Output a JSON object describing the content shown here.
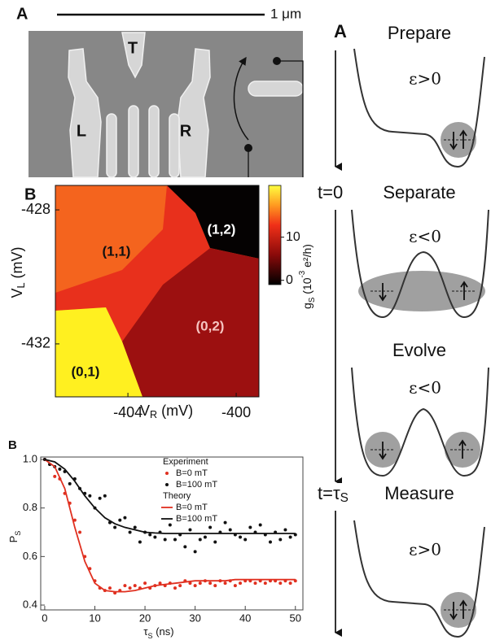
{
  "sem_image": {
    "label": "A",
    "scale_bar": "1 μm",
    "gate_labels": [
      "T",
      "L",
      "R"
    ]
  },
  "chart_data": [
    {
      "type": "heatmap",
      "panel_label": "B",
      "x_label": [
        "V",
        "R",
        " (mV)"
      ],
      "y_label": [
        "V",
        "L",
        " (mV)"
      ],
      "xlim": [
        -406.68,
        -399.16
      ],
      "ylim": [
        -433.58,
        -427.27
      ],
      "xticks": [
        -404,
        -400
      ],
      "yticks": [
        -432,
        -428
      ],
      "colorbar": {
        "clim": [
          -1,
          22
        ],
        "ticks": [
          0,
          10
        ],
        "label": [
          "g",
          "S",
          " (10",
          "-3",
          " e²/h)"
        ]
      },
      "region_labels": [
        "(1,1)",
        "(1,2)",
        "(0,2)",
        "(0,1)"
      ]
    },
    {
      "type": "line",
      "panel_label": "B",
      "x_label": [
        "τ",
        "S",
        " (ns)"
      ],
      "y_label": [
        "P",
        "S"
      ],
      "xlim": [
        -0.8,
        51.5
      ],
      "ylim": [
        0.38,
        1.01
      ],
      "xticks": [
        0,
        10,
        20,
        30,
        40,
        50
      ],
      "yticks": [
        0.4,
        0.6,
        0.8,
        {
          "value": 1,
          "label": "1.0"
        }
      ],
      "legend_titles": [
        "Experiment",
        "Theory"
      ],
      "series": [
        {
          "name": "B=0 mT",
          "color": "#e03020",
          "style": "markers",
          "x": [
            0,
            1,
            2,
            3,
            4,
            5,
            6,
            7,
            8,
            9,
            10,
            11,
            12,
            13,
            14,
            15,
            16,
            17,
            18,
            19,
            20,
            21,
            22,
            23,
            24,
            25,
            26,
            27,
            28,
            29,
            30,
            31,
            32,
            33,
            34,
            35,
            36,
            37,
            38,
            39,
            40,
            41,
            42,
            43,
            44,
            45,
            46,
            47,
            48,
            49,
            50
          ],
          "values": [
            1.0,
            0.98,
            0.93,
            0.92,
            0.86,
            0.82,
            0.75,
            0.7,
            0.6,
            0.55,
            0.5,
            0.47,
            0.46,
            0.47,
            0.45,
            0.46,
            0.48,
            0.47,
            0.48,
            0.47,
            0.49,
            0.47,
            0.48,
            0.49,
            0.48,
            0.49,
            0.47,
            0.48,
            0.5,
            0.49,
            0.48,
            0.49,
            0.5,
            0.49,
            0.48,
            0.5,
            0.49,
            0.5,
            0.48,
            0.49,
            0.5,
            0.5,
            0.49,
            0.5,
            0.49,
            0.5,
            0.5,
            0.49,
            0.5,
            0.49,
            0.5
          ]
        },
        {
          "name": "B=100 mT",
          "color": "#111111",
          "style": "markers",
          "x": [
            0,
            1,
            2,
            3,
            4,
            5,
            6,
            7,
            8,
            9,
            10,
            11,
            12,
            13,
            14,
            15,
            16,
            17,
            18,
            19,
            20,
            21,
            22,
            23,
            24,
            25,
            26,
            27,
            28,
            29,
            30,
            31,
            32,
            33,
            34,
            35,
            36,
            37,
            38,
            39,
            40,
            41,
            42,
            43,
            44,
            45,
            46,
            47,
            48,
            49,
            50
          ],
          "values": [
            1.0,
            0.98,
            0.97,
            0.96,
            0.95,
            0.9,
            0.92,
            0.88,
            0.86,
            0.85,
            0.8,
            0.84,
            0.85,
            0.74,
            0.72,
            0.75,
            0.76,
            0.7,
            0.72,
            0.66,
            0.7,
            0.69,
            0.68,
            0.7,
            0.67,
            0.73,
            0.67,
            0.69,
            0.64,
            0.71,
            0.62,
            0.67,
            0.68,
            0.72,
            0.66,
            0.7,
            0.74,
            0.71,
            0.69,
            0.68,
            0.67,
            0.72,
            0.7,
            0.73,
            0.69,
            0.66,
            0.7,
            0.67,
            0.71,
            0.68,
            0.69
          ]
        },
        {
          "name": "B=0 mT",
          "color": "#e03020",
          "style": "line",
          "x": [
            0,
            2,
            4,
            6,
            8,
            10,
            12,
            14,
            16,
            18,
            20,
            22,
            24,
            26,
            28,
            30,
            32,
            34,
            36,
            38,
            40,
            42,
            44,
            46,
            48,
            50
          ],
          "values": [
            1.0,
            0.97,
            0.88,
            0.72,
            0.58,
            0.49,
            0.46,
            0.455,
            0.455,
            0.46,
            0.47,
            0.48,
            0.485,
            0.49,
            0.495,
            0.5,
            0.5,
            0.5,
            0.5,
            0.505,
            0.505,
            0.505,
            0.505,
            0.505,
            0.505,
            0.505
          ]
        },
        {
          "name": "B=100 mT",
          "color": "#111111",
          "style": "line",
          "x": [
            0,
            2,
            4,
            6,
            8,
            10,
            12,
            14,
            16,
            18,
            20,
            22,
            24,
            26,
            28,
            30,
            32,
            34,
            36,
            38,
            40,
            42,
            44,
            46,
            48,
            50
          ],
          "values": [
            1.0,
            0.99,
            0.96,
            0.91,
            0.85,
            0.8,
            0.76,
            0.735,
            0.72,
            0.71,
            0.7,
            0.697,
            0.695,
            0.695,
            0.695,
            0.695,
            0.695,
            0.695,
            0.695,
            0.695,
            0.695,
            0.695,
            0.695,
            0.695,
            0.695,
            0.695
          ]
        }
      ]
    }
  ],
  "diagram": {
    "label": "A",
    "steps": [
      {
        "title": "Prepare",
        "detuning": "ε>0"
      },
      {
        "title": "Separate",
        "detuning": "ε<0"
      },
      {
        "title": "Evolve",
        "detuning": "ε<0"
      },
      {
        "title": "Measure",
        "detuning": "ε>0"
      }
    ],
    "times": [
      [
        "t=0"
      ],
      [
        "t=τ",
        "S"
      ]
    ]
  }
}
